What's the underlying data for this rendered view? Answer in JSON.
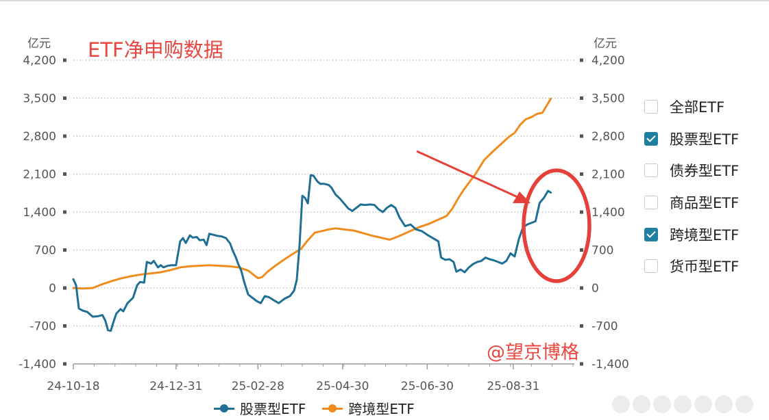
{
  "title": "ETF净申购数据",
  "watermark": "@望京博格",
  "unit_left": "亿元",
  "unit_right": "亿元",
  "filters": [
    {
      "label": "全部ETF",
      "checked": false
    },
    {
      "label": "股票型ETF",
      "checked": true
    },
    {
      "label": "债券型ETF",
      "checked": false
    },
    {
      "label": "商品型ETF",
      "checked": false
    },
    {
      "label": "跨境型ETF",
      "checked": true
    },
    {
      "label": "货币型ETF",
      "checked": false
    }
  ],
  "colors": {
    "stock": "#1f6f94",
    "cross_border": "#f08c1e",
    "annotation": "#e5403a",
    "grid": "#b5b5b5"
  },
  "chart_data": {
    "type": "line",
    "title": "ETF净申购数据",
    "ylabel": "亿元",
    "ylim": [
      -1400,
      4200
    ],
    "yticks": [
      -1400,
      -700,
      0,
      700,
      1400,
      2100,
      2800,
      3500,
      4200
    ],
    "ytick_labels_left": [
      "-1,400",
      "-700",
      "0",
      "700",
      "1,400",
      "2,100",
      "2,800",
      "3,500",
      "4,200"
    ],
    "ytick_labels_right": [
      "-1,400",
      "-700",
      "0",
      "700",
      "1,400",
      "2,100",
      "2,800",
      "3,500",
      "4,200"
    ],
    "x_start": "2024-10-18",
    "x_end": "2025-10-14",
    "xticks": [
      "2024-10-18",
      "2024-12-31",
      "2025-02-28",
      "2025-04-30",
      "2025-06-30",
      "2025-08-31"
    ],
    "xtick_labels": [
      "24-10-18",
      "24-12-31",
      "25-02-28",
      "25-04-30",
      "25-06-30",
      "25-08-31"
    ],
    "grid": "horizontal dotted",
    "legend_position": "bottom",
    "series": [
      {
        "name": "股票型ETF",
        "color": "#1f6f94",
        "points": [
          [
            "2024-10-18",
            160
          ],
          [
            "2024-10-20",
            50
          ],
          [
            "2024-10-22",
            -380
          ],
          [
            "2024-10-25",
            -420
          ],
          [
            "2024-10-28",
            -440
          ],
          [
            "2024-11-01",
            -530
          ],
          [
            "2024-11-05",
            -520
          ],
          [
            "2024-11-08",
            -500
          ],
          [
            "2024-11-10",
            -600
          ],
          [
            "2024-11-12",
            -780
          ],
          [
            "2024-11-14",
            -790
          ],
          [
            "2024-11-16",
            -620
          ],
          [
            "2024-11-18",
            -470
          ],
          [
            "2024-11-21",
            -390
          ],
          [
            "2024-11-23",
            -430
          ],
          [
            "2024-11-26",
            -280
          ],
          [
            "2024-11-30",
            -180
          ],
          [
            "2024-12-03",
            50
          ],
          [
            "2024-12-05",
            110
          ],
          [
            "2024-12-08",
            100
          ],
          [
            "2024-12-10",
            480
          ],
          [
            "2024-12-13",
            450
          ],
          [
            "2024-12-15",
            500
          ],
          [
            "2024-12-18",
            380
          ],
          [
            "2024-12-20",
            420
          ],
          [
            "2024-12-22",
            380
          ],
          [
            "2024-12-25",
            410
          ],
          [
            "2024-12-28",
            420
          ],
          [
            "2024-12-31",
            420
          ],
          [
            "2025-01-03",
            860
          ],
          [
            "2025-01-05",
            920
          ],
          [
            "2025-01-07",
            830
          ],
          [
            "2025-01-10",
            970
          ],
          [
            "2025-01-12",
            930
          ],
          [
            "2025-01-15",
            940
          ],
          [
            "2025-01-17",
            880
          ],
          [
            "2025-01-20",
            890
          ],
          [
            "2025-01-22",
            790
          ],
          [
            "2025-01-24",
            1000
          ],
          [
            "2025-01-27",
            980
          ],
          [
            "2025-01-30",
            960
          ],
          [
            "2025-02-02",
            950
          ],
          [
            "2025-02-05",
            920
          ],
          [
            "2025-02-08",
            820
          ],
          [
            "2025-02-10",
            680
          ],
          [
            "2025-02-12",
            570
          ],
          [
            "2025-02-14",
            430
          ],
          [
            "2025-02-16",
            320
          ],
          [
            "2025-02-18",
            120
          ],
          [
            "2025-02-21",
            -120
          ],
          [
            "2025-02-24",
            -180
          ],
          [
            "2025-02-27",
            -240
          ],
          [
            "2025-03-02",
            -280
          ],
          [
            "2025-03-05",
            -150
          ],
          [
            "2025-03-08",
            -170
          ],
          [
            "2025-03-11",
            -220
          ],
          [
            "2025-03-15",
            -280
          ],
          [
            "2025-03-19",
            -200
          ],
          [
            "2025-03-23",
            -150
          ],
          [
            "2025-03-26",
            -50
          ],
          [
            "2025-03-28",
            150
          ],
          [
            "2025-03-30",
            800
          ],
          [
            "2025-04-01",
            1700
          ],
          [
            "2025-04-03",
            1660
          ],
          [
            "2025-04-05",
            1560
          ],
          [
            "2025-04-07",
            2080
          ],
          [
            "2025-04-09",
            2070
          ],
          [
            "2025-04-12",
            1960
          ],
          [
            "2025-04-14",
            1920
          ],
          [
            "2025-04-17",
            1920
          ],
          [
            "2025-04-20",
            1900
          ],
          [
            "2025-04-22",
            1850
          ],
          [
            "2025-04-25",
            1720
          ],
          [
            "2025-04-28",
            1650
          ],
          [
            "2025-05-01",
            1560
          ],
          [
            "2025-05-04",
            1470
          ],
          [
            "2025-05-07",
            1420
          ],
          [
            "2025-05-10",
            1480
          ],
          [
            "2025-05-13",
            1540
          ],
          [
            "2025-05-16",
            1530
          ],
          [
            "2025-05-20",
            1540
          ],
          [
            "2025-05-23",
            1530
          ],
          [
            "2025-05-26",
            1450
          ],
          [
            "2025-05-29",
            1400
          ],
          [
            "2025-06-01",
            1480
          ],
          [
            "2025-06-04",
            1530
          ],
          [
            "2025-06-07",
            1480
          ],
          [
            "2025-06-10",
            1300
          ],
          [
            "2025-06-14",
            1140
          ],
          [
            "2025-06-18",
            1170
          ],
          [
            "2025-06-22",
            1080
          ],
          [
            "2025-06-26",
            1050
          ],
          [
            "2025-06-30",
            980
          ],
          [
            "2025-07-04",
            920
          ],
          [
            "2025-07-08",
            860
          ],
          [
            "2025-07-10",
            560
          ],
          [
            "2025-07-13",
            520
          ],
          [
            "2025-07-16",
            530
          ],
          [
            "2025-07-19",
            480
          ],
          [
            "2025-07-21",
            300
          ],
          [
            "2025-07-24",
            340
          ],
          [
            "2025-07-27",
            290
          ],
          [
            "2025-07-30",
            380
          ],
          [
            "2025-08-02",
            440
          ],
          [
            "2025-08-05",
            480
          ],
          [
            "2025-08-08",
            500
          ],
          [
            "2025-08-11",
            560
          ],
          [
            "2025-08-14",
            530
          ],
          [
            "2025-08-17",
            510
          ],
          [
            "2025-08-20",
            480
          ],
          [
            "2025-08-23",
            450
          ],
          [
            "2025-08-26",
            500
          ],
          [
            "2025-08-29",
            640
          ],
          [
            "2025-09-01",
            580
          ],
          [
            "2025-09-04",
            900
          ],
          [
            "2025-09-07",
            1120
          ],
          [
            "2025-09-10",
            1170
          ],
          [
            "2025-09-13",
            1200
          ],
          [
            "2025-09-16",
            1230
          ],
          [
            "2025-09-19",
            1570
          ],
          [
            "2025-09-22",
            1660
          ],
          [
            "2025-09-25",
            1790
          ],
          [
            "2025-09-27",
            1760
          ]
        ]
      },
      {
        "name": "跨境型ETF",
        "color": "#f08c1e",
        "points": [
          [
            "2024-10-18",
            0
          ],
          [
            "2024-10-25",
            -10
          ],
          [
            "2024-11-01",
            0
          ],
          [
            "2024-11-08",
            70
          ],
          [
            "2024-11-15",
            130
          ],
          [
            "2024-11-22",
            180
          ],
          [
            "2024-11-29",
            220
          ],
          [
            "2024-12-06",
            250
          ],
          [
            "2024-12-13",
            270
          ],
          [
            "2024-12-20",
            290
          ],
          [
            "2024-12-27",
            330
          ],
          [
            "2025-01-03",
            380
          ],
          [
            "2025-01-10",
            400
          ],
          [
            "2025-01-17",
            410
          ],
          [
            "2025-01-24",
            420
          ],
          [
            "2025-01-31",
            410
          ],
          [
            "2025-02-07",
            400
          ],
          [
            "2025-02-14",
            380
          ],
          [
            "2025-02-21",
            320
          ],
          [
            "2025-02-26",
            220
          ],
          [
            "2025-02-28",
            180
          ],
          [
            "2025-03-03",
            200
          ],
          [
            "2025-03-07",
            300
          ],
          [
            "2025-03-12",
            400
          ],
          [
            "2025-03-18",
            510
          ],
          [
            "2025-03-24",
            610
          ],
          [
            "2025-03-31",
            720
          ],
          [
            "2025-04-05",
            880
          ],
          [
            "2025-04-10",
            1020
          ],
          [
            "2025-04-15",
            1050
          ],
          [
            "2025-04-20",
            1080
          ],
          [
            "2025-04-25",
            1100
          ],
          [
            "2025-05-01",
            1080
          ],
          [
            "2025-05-08",
            1060
          ],
          [
            "2025-05-15",
            1010
          ],
          [
            "2025-05-22",
            960
          ],
          [
            "2025-05-29",
            920
          ],
          [
            "2025-06-03",
            890
          ],
          [
            "2025-06-10",
            960
          ],
          [
            "2025-06-17",
            1040
          ],
          [
            "2025-06-24",
            1120
          ],
          [
            "2025-07-01",
            1180
          ],
          [
            "2025-07-08",
            1260
          ],
          [
            "2025-07-14",
            1330
          ],
          [
            "2025-07-18",
            1460
          ],
          [
            "2025-07-22",
            1640
          ],
          [
            "2025-07-26",
            1800
          ],
          [
            "2025-07-30",
            1940
          ],
          [
            "2025-08-04",
            2110
          ],
          [
            "2025-08-10",
            2360
          ],
          [
            "2025-08-16",
            2510
          ],
          [
            "2025-08-22",
            2650
          ],
          [
            "2025-08-28",
            2790
          ],
          [
            "2025-09-01",
            2860
          ],
          [
            "2025-09-05",
            3010
          ],
          [
            "2025-09-09",
            3110
          ],
          [
            "2025-09-13",
            3150
          ],
          [
            "2025-09-17",
            3210
          ],
          [
            "2025-09-21",
            3230
          ],
          [
            "2025-09-24",
            3360
          ],
          [
            "2025-09-27",
            3490
          ]
        ]
      }
    ]
  }
}
